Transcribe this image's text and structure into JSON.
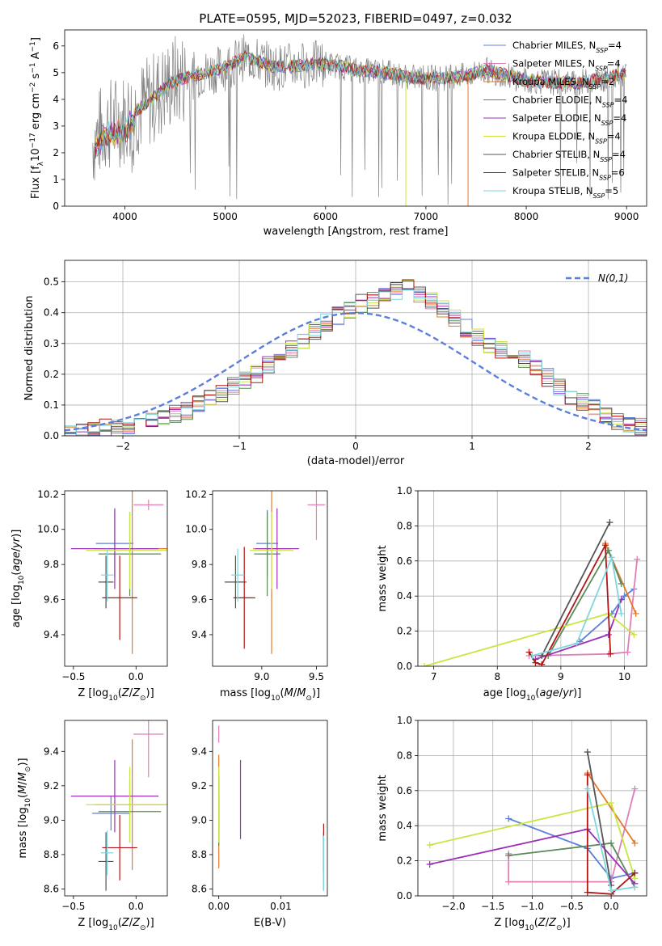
{
  "title": "PLATE=0595, MJD=52023, FIBERID=0497, z=0.032",
  "colors": {
    "chabrier_miles": "#5b7fdb",
    "salpeter_miles": "#e07fb8",
    "kroupa_miles": "#e37a2a",
    "chabrier_elodie": "#5a8a5a",
    "salpeter_elodie": "#9b30b8",
    "kroupa_elodie": "#c8e640",
    "chabrier_stelib": "#555555",
    "salpeter_stelib": "#b01515",
    "kroupa_stelib": "#7fd6e0",
    "data": "#808080"
  },
  "chart_data": [
    {
      "type": "line",
      "xlabel": "wavelength [Angstrom, rest frame]",
      "ylabel": "Flux [f_λ 10^-17 erg cm^-2 s^-1 A^-1]",
      "xlim": [
        3400,
        9200
      ],
      "ylim": [
        0,
        6.6
      ],
      "xticks": [
        4000,
        5000,
        6000,
        7000,
        8000,
        9000
      ],
      "yticks": [
        0,
        1,
        2,
        3,
        4,
        5,
        6
      ],
      "legend_position": "top-right",
      "series": [
        {
          "name": "Chabrier MILES, N_SSP=4",
          "color_key": "chabrier_miles"
        },
        {
          "name": "Salpeter MILES, N_SSP=4",
          "color_key": "salpeter_miles"
        },
        {
          "name": "Kroupa MILES, N_SSP=2",
          "color_key": "kroupa_miles"
        },
        {
          "name": "Chabrier ELODIE, N_SSP=4",
          "color_key": "chabrier_elodie"
        },
        {
          "name": "Salpeter ELODIE, N_SSP=4",
          "color_key": "salpeter_elodie"
        },
        {
          "name": "Kroupa ELODIE, N_SSP=4",
          "color_key": "kroupa_elodie"
        },
        {
          "name": "Chabrier STELIB, N_SSP=4",
          "color_key": "chabrier_stelib"
        },
        {
          "name": "Salpeter STELIB, N_SSP=6",
          "color_key": "salpeter_stelib"
        },
        {
          "name": "Kroupa STELIB, N_SSP=5",
          "color_key": "kroupa_stelib"
        }
      ],
      "continuum": [
        [
          3680,
          2.4
        ],
        [
          3800,
          3.0
        ],
        [
          4000,
          3.3
        ],
        [
          4200,
          3.8
        ],
        [
          4500,
          4.7
        ],
        [
          4800,
          5.0
        ],
        [
          5000,
          5.2
        ],
        [
          5200,
          5.6
        ],
        [
          5500,
          5.2
        ],
        [
          5800,
          5.3
        ],
        [
          6000,
          5.35
        ],
        [
          6300,
          5.1
        ],
        [
          6600,
          5.0
        ],
        [
          6900,
          4.8
        ],
        [
          7200,
          4.8
        ],
        [
          7420,
          4.9
        ],
        [
          7600,
          5.1
        ],
        [
          8000,
          4.7
        ],
        [
          8500,
          4.6
        ],
        [
          8800,
          4.8
        ],
        [
          9000,
          5.0
        ]
      ]
    },
    {
      "type": "bar",
      "xlabel": "(data-model)/error",
      "ylabel": "Normed distribution",
      "xlim": [
        -2.5,
        2.5
      ],
      "ylim": [
        0,
        0.57
      ],
      "xticks": [
        -2,
        -1,
        0,
        1,
        2
      ],
      "yticks": [
        0.0,
        0.1,
        0.2,
        0.3,
        0.4,
        0.5
      ],
      "legend": "N(0,1)",
      "legend_position": "top-right",
      "bin_width": 0.1,
      "bin_start": -2.5,
      "hist_values": [
        0.01,
        0.015,
        0.02,
        0.025,
        0.03,
        0.035,
        0.04,
        0.05,
        0.06,
        0.07,
        0.08,
        0.1,
        0.12,
        0.14,
        0.16,
        0.18,
        0.2,
        0.23,
        0.25,
        0.28,
        0.31,
        0.34,
        0.37,
        0.39,
        0.41,
        0.43,
        0.44,
        0.45,
        0.47,
        0.48,
        0.46,
        0.44,
        0.41,
        0.38,
        0.35,
        0.32,
        0.29,
        0.28,
        0.27,
        0.25,
        0.22,
        0.19,
        0.16,
        0.13,
        0.11,
        0.09,
        0.07,
        0.05,
        0.04,
        0.03
      ]
    },
    {
      "type": "scatter",
      "xlabel": "Z [log10(Z/Z_sun)]",
      "ylabel": "age [log10(age/yr)]",
      "xlim": [
        -0.57,
        0.25
      ],
      "ylim": [
        9.22,
        10.22
      ],
      "xticks": [
        -0.5,
        0.0
      ],
      "yticks": [
        9.4,
        9.6,
        9.8,
        10.0,
        10.2
      ],
      "points": [
        {
          "c": "chabrier_miles",
          "x": -0.17,
          "xe": 0.15,
          "y": 9.92,
          "ye": 0.19
        },
        {
          "c": "salpeter_miles",
          "x": 0.1,
          "xe": 0.12,
          "y": 10.14,
          "ye": 0.03
        },
        {
          "c": "kroupa_miles",
          "x": -0.03,
          "xe": 0.3,
          "y": 9.89,
          "ye": 0.6
        },
        {
          "c": "chabrier_elodie",
          "x": -0.05,
          "xe": 0.25,
          "y": 9.86,
          "ye": 0.24
        },
        {
          "c": "salpeter_elodie",
          "x": -0.17,
          "xe": 0.35,
          "y": 9.89,
          "ye": 0.23
        },
        {
          "c": "kroupa_elodie",
          "x": -0.05,
          "xe": 0.35,
          "y": 9.88,
          "ye": 0.22
        },
        {
          "c": "chabrier_stelib",
          "x": -0.24,
          "xe": 0.06,
          "y": 9.7,
          "ye": 0.15
        },
        {
          "c": "salpeter_stelib",
          "x": -0.13,
          "xe": 0.14,
          "y": 9.61,
          "ye": 0.24
        },
        {
          "c": "kroupa_stelib",
          "x": -0.23,
          "xe": 0.05,
          "y": 9.74,
          "ye": 0.15
        }
      ]
    },
    {
      "type": "scatter",
      "xlabel": "mass [log10(M/M_sun)]",
      "ylabel": "",
      "xlim": [
        8.55,
        9.6
      ],
      "ylim": [
        9.22,
        10.22
      ],
      "xticks": [
        9.0,
        9.5
      ],
      "yticks": [
        9.4,
        9.6,
        9.8,
        10.0,
        10.2
      ],
      "points": [
        {
          "c": "chabrier_miles",
          "x": 9.05,
          "xe": 0.1,
          "y": 9.92,
          "ye": 0.19
        },
        {
          "c": "salpeter_miles",
          "x": 9.5,
          "xe": 0.08,
          "y": 10.14,
          "ye": 0.2
        },
        {
          "c": "kroupa_miles",
          "x": 9.09,
          "xe": 0.17,
          "y": 9.89,
          "ye": 0.6
        },
        {
          "c": "chabrier_elodie",
          "x": 9.05,
          "xe": 0.12,
          "y": 9.86,
          "ye": 0.24
        },
        {
          "c": "salpeter_elodie",
          "x": 9.14,
          "xe": 0.2,
          "y": 9.89,
          "ye": 0.23
        },
        {
          "c": "kroupa_elodie",
          "x": 9.09,
          "xe": 0.2,
          "y": 9.88,
          "ye": 0.22
        },
        {
          "c": "chabrier_stelib",
          "x": 8.76,
          "xe": 0.1,
          "y": 9.7,
          "ye": 0.15
        },
        {
          "c": "salpeter_stelib",
          "x": 8.84,
          "xe": 0.1,
          "y": 9.61,
          "ye": 0.29
        },
        {
          "c": "kroupa_stelib",
          "x": 8.78,
          "xe": 0.06,
          "y": 9.74,
          "ye": 0.15
        }
      ]
    },
    {
      "type": "line",
      "xlabel": "age [log10(age/yr)]",
      "ylabel": "mass weight",
      "xlim": [
        6.75,
        10.35
      ],
      "ylim": [
        0,
        1.0
      ],
      "xticks": [
        7,
        8,
        9,
        10
      ],
      "yticks": [
        0.0,
        0.2,
        0.4,
        0.6,
        0.8,
        1.0
      ],
      "series": [
        {
          "c": "chabrier_miles",
          "x": [
            9.3,
            9.8,
            10.0,
            10.15
          ],
          "y": [
            0.14,
            0.3,
            0.4,
            0.44
          ]
        },
        {
          "c": "salpeter_miles",
          "x": [
            8.5,
            9.75,
            10.05,
            10.2
          ],
          "y": [
            0.06,
            0.07,
            0.08,
            0.61
          ]
        },
        {
          "c": "kroupa_miles",
          "x": [
            9.7,
            10.18
          ],
          "y": [
            0.7,
            0.3
          ]
        },
        {
          "c": "chabrier_elodie",
          "x": [
            8.8,
            9.75,
            9.95
          ],
          "y": [
            0.06,
            0.66,
            0.47
          ]
        },
        {
          "c": "salpeter_elodie",
          "x": [
            8.6,
            9.75,
            9.95
          ],
          "y": [
            0.04,
            0.18,
            0.38
          ]
        },
        {
          "c": "kroupa_elodie",
          "x": [
            6.85,
            9.75,
            10.15
          ],
          "y": [
            0.0,
            0.3,
            0.18
          ]
        },
        {
          "c": "chabrier_stelib",
          "x": [
            8.7,
            9.77
          ],
          "y": [
            0.06,
            0.82
          ]
        },
        {
          "c": "salpeter_stelib",
          "x": [
            8.5,
            8.6,
            8.7,
            9.7,
            9.78
          ],
          "y": [
            0.08,
            0.02,
            0.01,
            0.69,
            0.07
          ]
        },
        {
          "c": "kroupa_stelib",
          "x": [
            8.55,
            9.25,
            9.8,
            9.95
          ],
          "y": [
            0.06,
            0.13,
            0.62,
            0.3
          ]
        }
      ]
    },
    {
      "type": "scatter",
      "xlabel": "Z [log10(Z/Z_sun)]",
      "ylabel": "mass [log10(M/M_sun)]",
      "xlim": [
        -0.57,
        0.25
      ],
      "ylim": [
        8.56,
        9.58
      ],
      "xticks": [
        -0.5,
        0.0
      ],
      "yticks": [
        8.6,
        8.8,
        9.0,
        9.2,
        9.4
      ],
      "points": [
        {
          "c": "chabrier_miles",
          "x": -0.2,
          "xe": 0.15,
          "y": 9.04,
          "ye": 0.1
        },
        {
          "c": "salpeter_miles",
          "x": 0.1,
          "xe": 0.12,
          "y": 9.5,
          "ye": 0.25
        },
        {
          "c": "kroupa_miles",
          "x": -0.03,
          "xe": 0.3,
          "y": 9.09,
          "ye": 0.38
        },
        {
          "c": "chabrier_elodie",
          "x": -0.05,
          "xe": 0.25,
          "y": 9.05,
          "ye": 0.18
        },
        {
          "c": "salpeter_elodie",
          "x": -0.17,
          "xe": 0.35,
          "y": 9.14,
          "ye": 0.21
        },
        {
          "c": "kroupa_elodie",
          "x": -0.05,
          "xe": 0.35,
          "y": 9.09,
          "ye": 0.22
        },
        {
          "c": "chabrier_stelib",
          "x": -0.24,
          "xe": 0.06,
          "y": 8.76,
          "ye": 0.17
        },
        {
          "c": "salpeter_stelib",
          "x": -0.13,
          "xe": 0.14,
          "y": 8.84,
          "ye": 0.19
        },
        {
          "c": "kroupa_stelib",
          "x": -0.23,
          "xe": 0.05,
          "y": 8.81,
          "ye": 0.13
        }
      ]
    },
    {
      "type": "scatter",
      "xlabel": "E(B-V)",
      "ylabel": "",
      "xlim": [
        -0.001,
        0.0175
      ],
      "ylim": [
        8.56,
        9.58
      ],
      "xticks": [
        0.0,
        0.01
      ],
      "xticklabels": [
        "0.00",
        "0.01"
      ],
      "yticks": [
        8.6,
        8.8,
        9.0,
        9.2,
        9.4
      ],
      "points": [
        {
          "c": "chabrier_miles",
          "x": 0.0,
          "xe": 0.0,
          "y": 9.04,
          "ye": 0.1
        },
        {
          "c": "salpeter_miles",
          "x": 0.0,
          "xe": 0.0,
          "y": 9.5,
          "ye": 0.05
        },
        {
          "c": "kroupa_miles",
          "x": 0.0,
          "xe": 0.0,
          "y": 9.05,
          "ye": 0.33
        },
        {
          "c": "chabrier_elodie",
          "x": 0.0,
          "xe": 0.0,
          "y": 9.05,
          "ye": 0.2
        },
        {
          "c": "salpeter_elodie",
          "x": 0.0035,
          "xe": 0.0,
          "y": 9.12,
          "ye": 0.23
        },
        {
          "c": "kroupa_elodie",
          "x": 0.0,
          "xe": 0.0,
          "y": 9.09,
          "ye": 0.22
        },
        {
          "c": "chabrier_stelib",
          "x": 0.0169,
          "xe": 0.0,
          "y": 8.76,
          "ye": 0.17
        },
        {
          "c": "salpeter_stelib",
          "x": 0.0169,
          "xe": 0.0,
          "y": 8.84,
          "ye": 0.14
        },
        {
          "c": "kroupa_stelib",
          "x": 0.0169,
          "xe": 0.0,
          "y": 8.75,
          "ye": 0.16
        }
      ]
    },
    {
      "type": "line",
      "xlabel": "Z [log10(Z/Z_sun)]",
      "ylabel": "mass weight",
      "xlim": [
        -2.45,
        0.45
      ],
      "ylim": [
        0,
        1.0
      ],
      "xticks": [
        -2.0,
        -1.5,
        -1.0,
        -0.5,
        0.0
      ],
      "yticks": [
        0.0,
        0.2,
        0.4,
        0.6,
        0.8,
        1.0
      ],
      "series": [
        {
          "c": "chabrier_miles",
          "x": [
            -1.3,
            -0.3,
            0.0,
            0.3
          ],
          "y": [
            0.44,
            0.27,
            0.1,
            0.13
          ]
        },
        {
          "c": "salpeter_miles",
          "x": [
            -1.3,
            -1.3,
            0.0,
            0.3
          ],
          "y": [
            0.24,
            0.08,
            0.08,
            0.61
          ]
        },
        {
          "c": "kroupa_miles",
          "x": [
            -0.3,
            0.3
          ],
          "y": [
            0.7,
            0.3
          ]
        },
        {
          "c": "chabrier_elodie",
          "x": [
            -1.3,
            0.0,
            0.3
          ],
          "y": [
            0.23,
            0.3,
            0.05
          ]
        },
        {
          "c": "salpeter_elodie",
          "x": [
            -2.3,
            -0.3,
            0.3
          ],
          "y": [
            0.18,
            0.38,
            0.07
          ]
        },
        {
          "c": "kroupa_elodie",
          "x": [
            -2.3,
            0.0,
            0.3
          ],
          "y": [
            0.29,
            0.53,
            0.1
          ]
        },
        {
          "c": "chabrier_stelib",
          "x": [
            -0.3,
            0.0
          ],
          "y": [
            0.82,
            0.06
          ]
        },
        {
          "c": "salpeter_stelib",
          "x": [
            -0.3,
            -0.3,
            0.0,
            0.3
          ],
          "y": [
            0.69,
            0.02,
            0.01,
            0.13
          ]
        },
        {
          "c": "kroupa_stelib",
          "x": [
            -0.3,
            0.0,
            0.3
          ],
          "y": [
            0.61,
            0.03,
            0.05
          ]
        }
      ]
    }
  ]
}
